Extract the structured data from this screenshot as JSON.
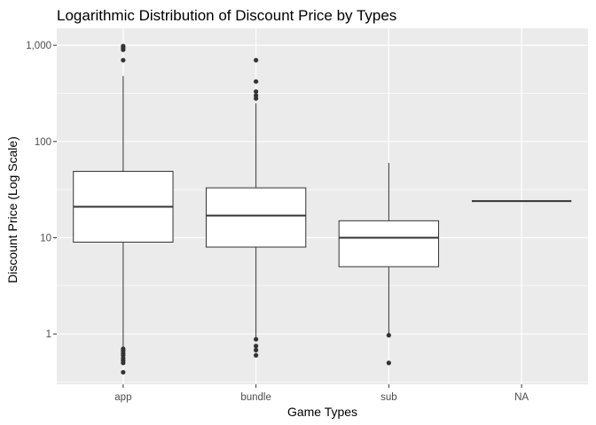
{
  "chart_data": {
    "type": "boxplot",
    "title": "Logarithmic Distribution of Discount Price by Types",
    "xlabel": "Game Types",
    "ylabel": "Discount Price (Log Scale)",
    "yscale": "log10",
    "ylim": [
      0.3,
      1500
    ],
    "yticks": [
      {
        "value": 1,
        "label": "1"
      },
      {
        "value": 10,
        "label": "10"
      },
      {
        "value": 100,
        "label": "100"
      },
      {
        "value": 1000,
        "label": "1,000"
      }
    ],
    "categories": [
      "app",
      "bundle",
      "sub",
      "NA"
    ],
    "boxes": [
      {
        "category": "app",
        "whisker_low": 0.72,
        "q1": 9,
        "median": 21,
        "q3": 49,
        "whisker_high": 480,
        "outliers": [
          0.4,
          0.5,
          0.53,
          0.56,
          0.6,
          0.63,
          0.67,
          0.7,
          700,
          900,
          940,
          980
        ]
      },
      {
        "category": "bundle",
        "whisker_low": 0.9,
        "q1": 8,
        "median": 17,
        "q3": 33,
        "whisker_high": 250,
        "outliers": [
          0.6,
          0.68,
          0.75,
          0.88,
          280,
          300,
          330,
          420,
          700
        ]
      },
      {
        "category": "sub",
        "whisker_low": 1.0,
        "q1": 5,
        "median": 10,
        "q3": 15,
        "whisker_high": 60,
        "outliers": [
          0.5,
          0.97
        ]
      },
      {
        "category": "NA",
        "whisker_low": 24,
        "q1": 24,
        "median": 24,
        "q3": 24,
        "whisker_high": 24,
        "outliers": []
      }
    ],
    "grid": true,
    "legend": "none",
    "colors": {
      "panel": "#ebebeb",
      "grid_major": "#ffffff",
      "box_fill": "#ffffff",
      "box_line": "#333333",
      "outlier": "#333333"
    }
  }
}
